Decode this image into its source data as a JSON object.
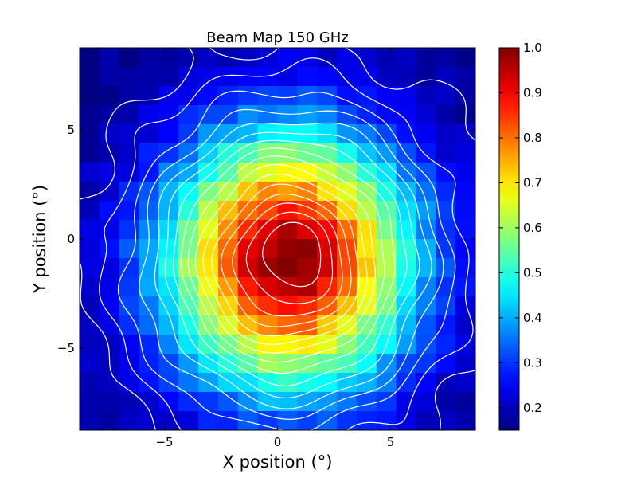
{
  "chart_data": {
    "type": "heatmap",
    "title": "Beam Map 150 GHz",
    "xlabel": "X position (°)",
    "ylabel": "Y position (°)",
    "xlim": [
      -8.75,
      8.75
    ],
    "ylim": [
      -8.75,
      8.75
    ],
    "grid": false,
    "colormap": "jet",
    "x_ticks": [
      -5,
      0,
      5
    ],
    "x_tick_labels": [
      "−5",
      "0",
      "5"
    ],
    "y_ticks": [
      -5,
      0,
      5
    ],
    "y_tick_labels": [
      "−5",
      "0",
      "5"
    ],
    "colorbar": {
      "range": [
        0.15,
        1.0
      ],
      "ticks": [
        0.2,
        0.3,
        0.4,
        0.5,
        0.6,
        0.7,
        0.8,
        0.9,
        1.0
      ],
      "tick_labels": [
        "0.2",
        "0.3",
        "0.4",
        "0.5",
        "0.6",
        "0.7",
        "0.8",
        "0.9",
        "1.0"
      ]
    },
    "grid_size": [
      20,
      20
    ],
    "pixel_size_deg": 0.875,
    "beam_model": {
      "peak": 1.0,
      "floor": 0.16,
      "center_x": 0.5,
      "center_y": -1.0,
      "sigma_x": 3.8,
      "sigma_y": 4.1
    },
    "contour_levels": [
      0.2,
      0.25,
      0.3,
      0.35,
      0.4,
      0.45,
      0.5,
      0.55,
      0.6,
      0.65,
      0.7,
      0.75,
      0.8,
      0.85,
      0.9,
      0.95
    ],
    "contour_color": "#ffffff",
    "axes_color": "#000000"
  }
}
